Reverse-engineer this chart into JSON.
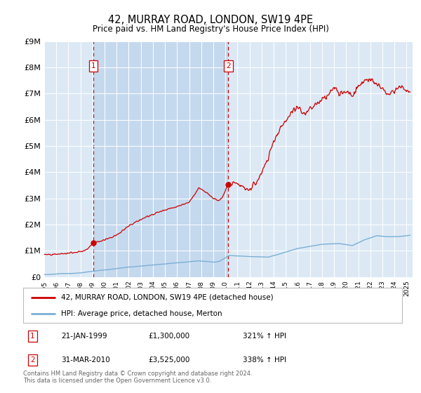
{
  "title": "42, MURRAY ROAD, LONDON, SW19 4PE",
  "subtitle": "Price paid vs. HM Land Registry's House Price Index (HPI)",
  "ylim": [
    0,
    9000000
  ],
  "xlim_start": 1995.0,
  "xlim_end": 2025.5,
  "bg_color": "#ffffff",
  "plot_bg_color": "#dce9f5",
  "plot_bg_color2": "#c8dff0",
  "grid_color": "#ffffff",
  "hpi_line_color": "#7aafd4",
  "price_line_color": "#cc0000",
  "sale1_date": 1999.056,
  "sale1_price": 1300000,
  "sale2_date": 2010.247,
  "sale2_price": 3525000,
  "yticks": [
    0,
    1000000,
    2000000,
    3000000,
    4000000,
    5000000,
    6000000,
    7000000,
    8000000,
    9000000
  ],
  "ytick_labels": [
    "£0",
    "£1M",
    "£2M",
    "£3M",
    "£4M",
    "£5M",
    "£6M",
    "£7M",
    "£8M",
    "£9M"
  ],
  "footer_text": "Contains HM Land Registry data © Crown copyright and database right 2024.\nThis data is licensed under the Open Government Licence v3.0.",
  "legend_line1": "42, MURRAY ROAD, LONDON, SW19 4PE (detached house)",
  "legend_line2": "HPI: Average price, detached house, Merton",
  "sale1_hpi_label": "21-JAN-1999",
  "sale1_price_label": "£1,300,000",
  "sale1_pct_label": "321% ↑ HPI",
  "sale2_hpi_label": "31-MAR-2010",
  "sale2_price_label": "£3,525,000",
  "sale2_pct_label": "338% ↑ HPI"
}
